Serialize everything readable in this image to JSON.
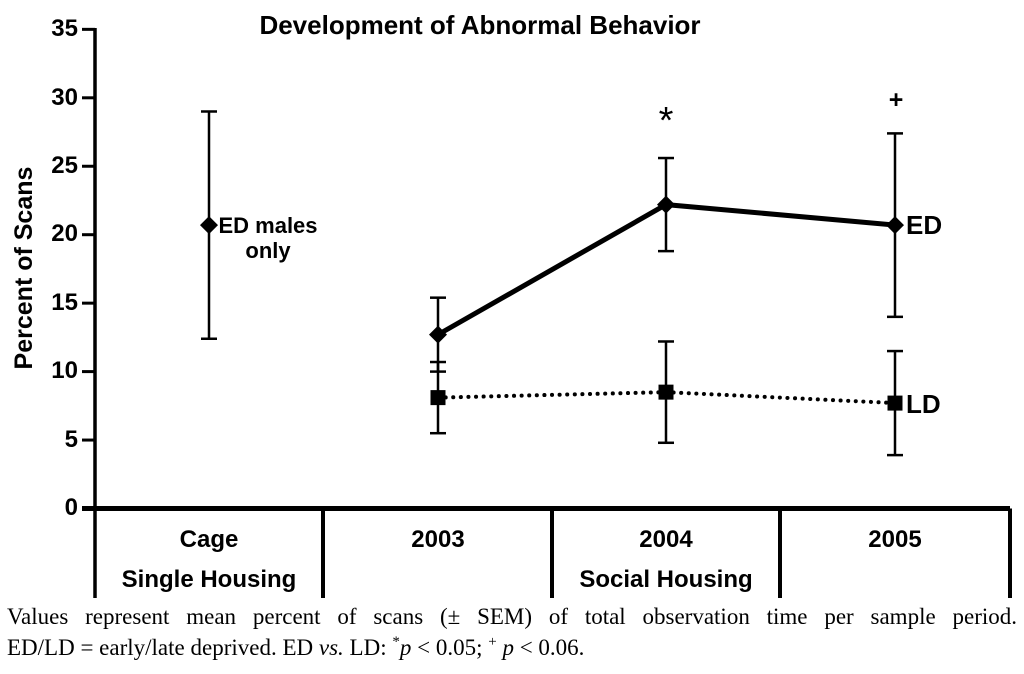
{
  "chart_data": {
    "type": "line",
    "title": "Development of Abnormal Behavior",
    "grid": false,
    "legend_position": "end-of-line-labels",
    "y_axis": {
      "label": "Percent of Scans",
      "range": [
        0,
        35
      ],
      "ticks": [
        35,
        30,
        25,
        20,
        15,
        10,
        5,
        0
      ]
    },
    "x_axis": {
      "categories": [
        "Cage",
        "2003",
        "2004",
        "2005"
      ],
      "group_labels": [
        {
          "label": "Single Housing",
          "categories": [
            "Cage"
          ]
        },
        {
          "label": "Social Housing",
          "categories": [
            "2003",
            "2004",
            "2005"
          ]
        }
      ]
    },
    "series": [
      {
        "name": "ED",
        "marker": "diamond",
        "line_style": "solid",
        "values": [
          20.7,
          12.7,
          22.2,
          20.7
        ],
        "sem": [
          8.3,
          2.7,
          3.4,
          6.7
        ],
        "line_segments": [
          [
            1,
            2,
            3
          ]
        ]
      },
      {
        "name": "LD",
        "marker": "square",
        "line_style": "dotted",
        "values": [
          null,
          8.1,
          8.5,
          7.7
        ],
        "sem": [
          null,
          2.6,
          3.7,
          3.8
        ],
        "line_segments": [
          [
            1,
            2,
            3
          ]
        ]
      }
    ],
    "annotations": {
      "sig_2004": "*",
      "sig_2005": "+",
      "point_label": {
        "line1": "ED males",
        "line2": "only"
      }
    }
  },
  "caption": {
    "line1": "Values represent mean percent of scans (± SEM) of total observation time per sample period.",
    "line2": {
      "t1": "ED/LD = early/late deprived. ED ",
      "it1": "vs.",
      "t2": " LD: ",
      "sup1": "*",
      "it2": "p",
      "t3": " < 0.05; ",
      "sup2": "+",
      "t4": " ",
      "it3": "p",
      "t5": " < 0.06."
    }
  }
}
